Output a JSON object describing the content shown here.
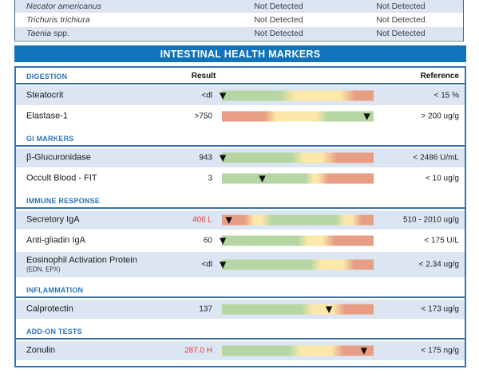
{
  "pathogens_table": {
    "rows": [
      {
        "name_italic": "Necator americanus",
        "name_regular": "",
        "col1": "Not Detected",
        "col2": "Not Detected",
        "shaded": true
      },
      {
        "name_italic": "Trichuris trichiura",
        "name_regular": "",
        "col1": "Not Detected",
        "col2": "Not Detected",
        "shaded": false
      },
      {
        "name_italic": "Taenia",
        "name_regular": " spp.",
        "col1": "Not Detected",
        "col2": "Not Detected",
        "shaded": true
      }
    ]
  },
  "banner": {
    "title": "INTESTINAL HEALTH MARKERS"
  },
  "columns": {
    "result": "Result",
    "reference": "Reference"
  },
  "sections": [
    {
      "title": "DIGESTION",
      "show_headers": true,
      "rows": [
        {
          "name": "Steatocrit",
          "sub": "",
          "result": "<dl",
          "flagged": false,
          "reference": "< 15 %",
          "shaded": true,
          "tall": false,
          "marker_pct": 1,
          "stops": [
            [
              "g",
              0
            ],
            [
              "g",
              38
            ],
            [
              "y",
              48
            ],
            [
              "y",
              78
            ],
            [
              "r",
              88
            ],
            [
              "r",
              100
            ]
          ]
        },
        {
          "name": "Elastase-1",
          "sub": "",
          "result": ">750",
          "flagged": false,
          "reference": "> 200 ug/g",
          "shaded": false,
          "tall": false,
          "marker_pct": 96,
          "stops": [
            [
              "r",
              0
            ],
            [
              "r",
              28
            ],
            [
              "y",
              36
            ],
            [
              "y",
              62
            ],
            [
              "g",
              70
            ],
            [
              "g",
              100
            ]
          ]
        }
      ]
    },
    {
      "title": "GI MARKERS",
      "show_headers": false,
      "rows": [
        {
          "name": "β-Glucuronidase",
          "sub": "",
          "result": "943",
          "flagged": false,
          "reference": "< 2486 U/mL",
          "shaded": true,
          "tall": false,
          "marker_pct": 1,
          "stops": [
            [
              "g",
              0
            ],
            [
              "g",
              46
            ],
            [
              "y",
              54
            ],
            [
              "y",
              66
            ],
            [
              "r",
              76
            ],
            [
              "r",
              100
            ]
          ]
        },
        {
          "name": "Occult Blood - FIT",
          "sub": "",
          "result": "3",
          "flagged": false,
          "reference": "< 10 ug/g",
          "shaded": false,
          "tall": false,
          "marker_pct": 27,
          "stops": [
            [
              "g",
              0
            ],
            [
              "g",
              55
            ],
            [
              "y",
              60
            ],
            [
              "y",
              63
            ],
            [
              "r",
              70
            ],
            [
              "r",
              100
            ]
          ]
        }
      ]
    },
    {
      "title": "IMMUNE RESPONSE",
      "show_headers": false,
      "rows": [
        {
          "name": "Secretory IgA",
          "sub": "",
          "result": "406 L",
          "flagged": true,
          "reference": "510 - 2010 ug/g",
          "shaded": true,
          "tall": false,
          "marker_pct": 5,
          "stops": [
            [
              "r",
              0
            ],
            [
              "r",
              15
            ],
            [
              "y",
              21
            ],
            [
              "y",
              26
            ],
            [
              "g",
              33
            ],
            [
              "g",
              75
            ],
            [
              "y",
              81
            ],
            [
              "y",
              86
            ],
            [
              "r",
              92
            ],
            [
              "r",
              100
            ]
          ]
        },
        {
          "name": "Anti-gliadin IgA",
          "sub": "",
          "result": "60",
          "flagged": false,
          "reference": "< 175 U/L",
          "shaded": false,
          "tall": false,
          "marker_pct": 1,
          "stops": [
            [
              "g",
              0
            ],
            [
              "g",
              50
            ],
            [
              "y",
              57
            ],
            [
              "y",
              66
            ],
            [
              "r",
              74
            ],
            [
              "r",
              100
            ]
          ]
        },
        {
          "name": "Eosinophil Activation Protein",
          "sub": "(EDN, EPX)",
          "result": "<dl",
          "flagged": false,
          "reference": "< 2.34 ug/g",
          "shaded": true,
          "tall": true,
          "marker_pct": 1,
          "stops": [
            [
              "g",
              0
            ],
            [
              "g",
              58
            ],
            [
              "y",
              65
            ],
            [
              "y",
              80
            ],
            [
              "r",
              87
            ],
            [
              "r",
              100
            ]
          ]
        }
      ]
    },
    {
      "title": "INFLAMMATION",
      "show_headers": false,
      "rows": [
        {
          "name": "Calprotectin",
          "sub": "",
          "result": "137",
          "flagged": false,
          "reference": "< 173 ug/g",
          "shaded": true,
          "tall": false,
          "marker_pct": 71,
          "stops": [
            [
              "g",
              0
            ],
            [
              "g",
              52
            ],
            [
              "y",
              60
            ],
            [
              "y",
              73
            ],
            [
              "r",
              81
            ],
            [
              "r",
              100
            ]
          ]
        }
      ]
    },
    {
      "title": "ADD-ON TESTS",
      "show_headers": false,
      "rows": [
        {
          "name": "Zonulin",
          "sub": "",
          "result": "287.0 H",
          "flagged": true,
          "reference": "< 175 ng/g",
          "shaded": true,
          "tall": false,
          "marker_pct": 94,
          "stops": [
            [
              "g",
              0
            ],
            [
              "g",
              44
            ],
            [
              "y",
              52
            ],
            [
              "y",
              72
            ],
            [
              "r",
              80
            ],
            [
              "r",
              100
            ]
          ]
        }
      ]
    }
  ],
  "colors": {
    "banner_bg": "#1173b9",
    "section_title": "#2e74b5",
    "rule": "#3a6ea5",
    "box_border": "#2e75b6",
    "row_shaded": "#dce6f2",
    "ptable_shaded": "#dbe5f1",
    "flag_red": "#e8392b",
    "bar_green": "#b5d6a3",
    "bar_yellow": "#fce8a8",
    "bar_red": "#e89e85",
    "marker": "#111111"
  }
}
